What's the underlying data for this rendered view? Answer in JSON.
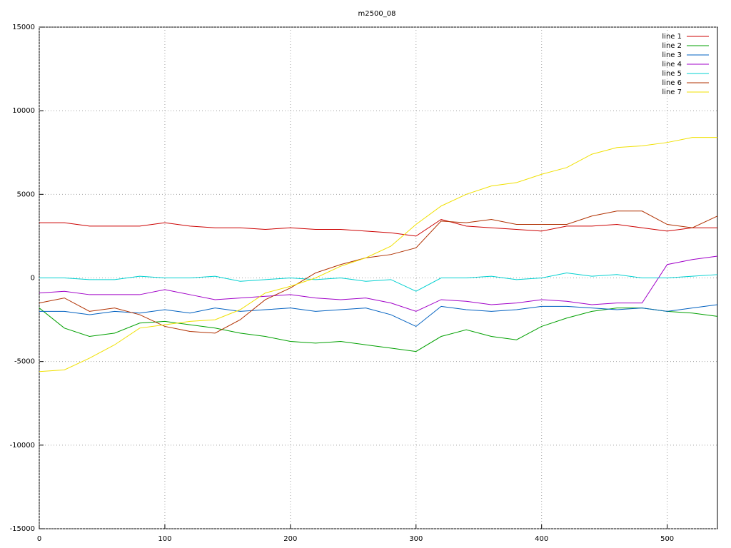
{
  "chart_data": {
    "type": "line",
    "title": "m2500_08",
    "x": [
      0,
      20,
      40,
      60,
      80,
      100,
      120,
      140,
      160,
      180,
      200,
      220,
      240,
      260,
      280,
      300,
      320,
      340,
      360,
      380,
      400,
      420,
      440,
      460,
      480,
      500,
      520,
      540
    ],
    "series": [
      {
        "name": "line 1",
        "color": "#cc0000",
        "values": [
          3300,
          3300,
          3100,
          3100,
          3100,
          3300,
          3100,
          3000,
          3000,
          2900,
          3000,
          2900,
          2900,
          2800,
          2700,
          2500,
          3500,
          3100,
          3000,
          2900,
          2800,
          3100,
          3100,
          3200,
          3000,
          2800,
          3000,
          3000
        ]
      },
      {
        "name": "line 2",
        "color": "#00a000",
        "values": [
          -1800,
          -3000,
          -3500,
          -3300,
          -2700,
          -2600,
          -2800,
          -3000,
          -3300,
          -3500,
          -3800,
          -3900,
          -3800,
          -4000,
          -4200,
          -4400,
          -3500,
          -3100,
          -3500,
          -3700,
          -2900,
          -2400,
          -2000,
          -1800,
          -1800,
          -2000,
          -2100,
          -2300
        ]
      },
      {
        "name": "line 3",
        "color": "#0060c0",
        "values": [
          -2000,
          -2000,
          -2200,
          -2000,
          -2100,
          -1900,
          -2100,
          -1800,
          -2000,
          -1900,
          -1800,
          -2000,
          -1900,
          -1800,
          -2200,
          -2900,
          -1700,
          -1900,
          -2000,
          -1900,
          -1700,
          -1700,
          -1800,
          -1900,
          -1800,
          -2000,
          -1800,
          -1600
        ]
      },
      {
        "name": "line 4",
        "color": "#a000c8",
        "values": [
          -900,
          -800,
          -1000,
          -1000,
          -1000,
          -700,
          -1000,
          -1300,
          -1200,
          -1100,
          -1000,
          -1200,
          -1300,
          -1200,
          -1500,
          -2000,
          -1300,
          -1400,
          -1600,
          -1500,
          -1300,
          -1400,
          -1600,
          -1500,
          -1500,
          800,
          1100,
          1300
        ]
      },
      {
        "name": "line 5",
        "color": "#00d0d0",
        "values": [
          0,
          0,
          -100,
          -100,
          100,
          0,
          0,
          100,
          -200,
          -100,
          0,
          -100,
          0,
          -200,
          -100,
          -800,
          0,
          0,
          100,
          -100,
          0,
          300,
          100,
          200,
          0,
          0,
          100,
          200
        ]
      },
      {
        "name": "line 6",
        "color": "#b03000",
        "values": [
          -1500,
          -1200,
          -2000,
          -1800,
          -2200,
          -2900,
          -3200,
          -3300,
          -2500,
          -1300,
          -600,
          300,
          800,
          1200,
          1400,
          1800,
          3400,
          3300,
          3500,
          3200,
          3200,
          3200,
          3700,
          4000,
          4000,
          3200,
          3000,
          3700
        ]
      },
      {
        "name": "line 7",
        "color": "#f0e000",
        "values": [
          -5600,
          -5500,
          -4800,
          -4000,
          -3000,
          -2800,
          -2600,
          -2500,
          -1900,
          -900,
          -500,
          0,
          700,
          1200,
          1900,
          3200,
          4300,
          5000,
          5500,
          5700,
          6200,
          6600,
          7400,
          7800,
          7900,
          8100,
          8400,
          8400
        ]
      }
    ],
    "xlim": [
      0,
      540
    ],
    "ylim": [
      -15000,
      15000
    ],
    "xticks": [
      0,
      100,
      200,
      300,
      400,
      500
    ],
    "yticks": [
      -15000,
      -10000,
      -5000,
      0,
      5000,
      10000,
      15000
    ],
    "grid": true,
    "legend": "top-right"
  }
}
